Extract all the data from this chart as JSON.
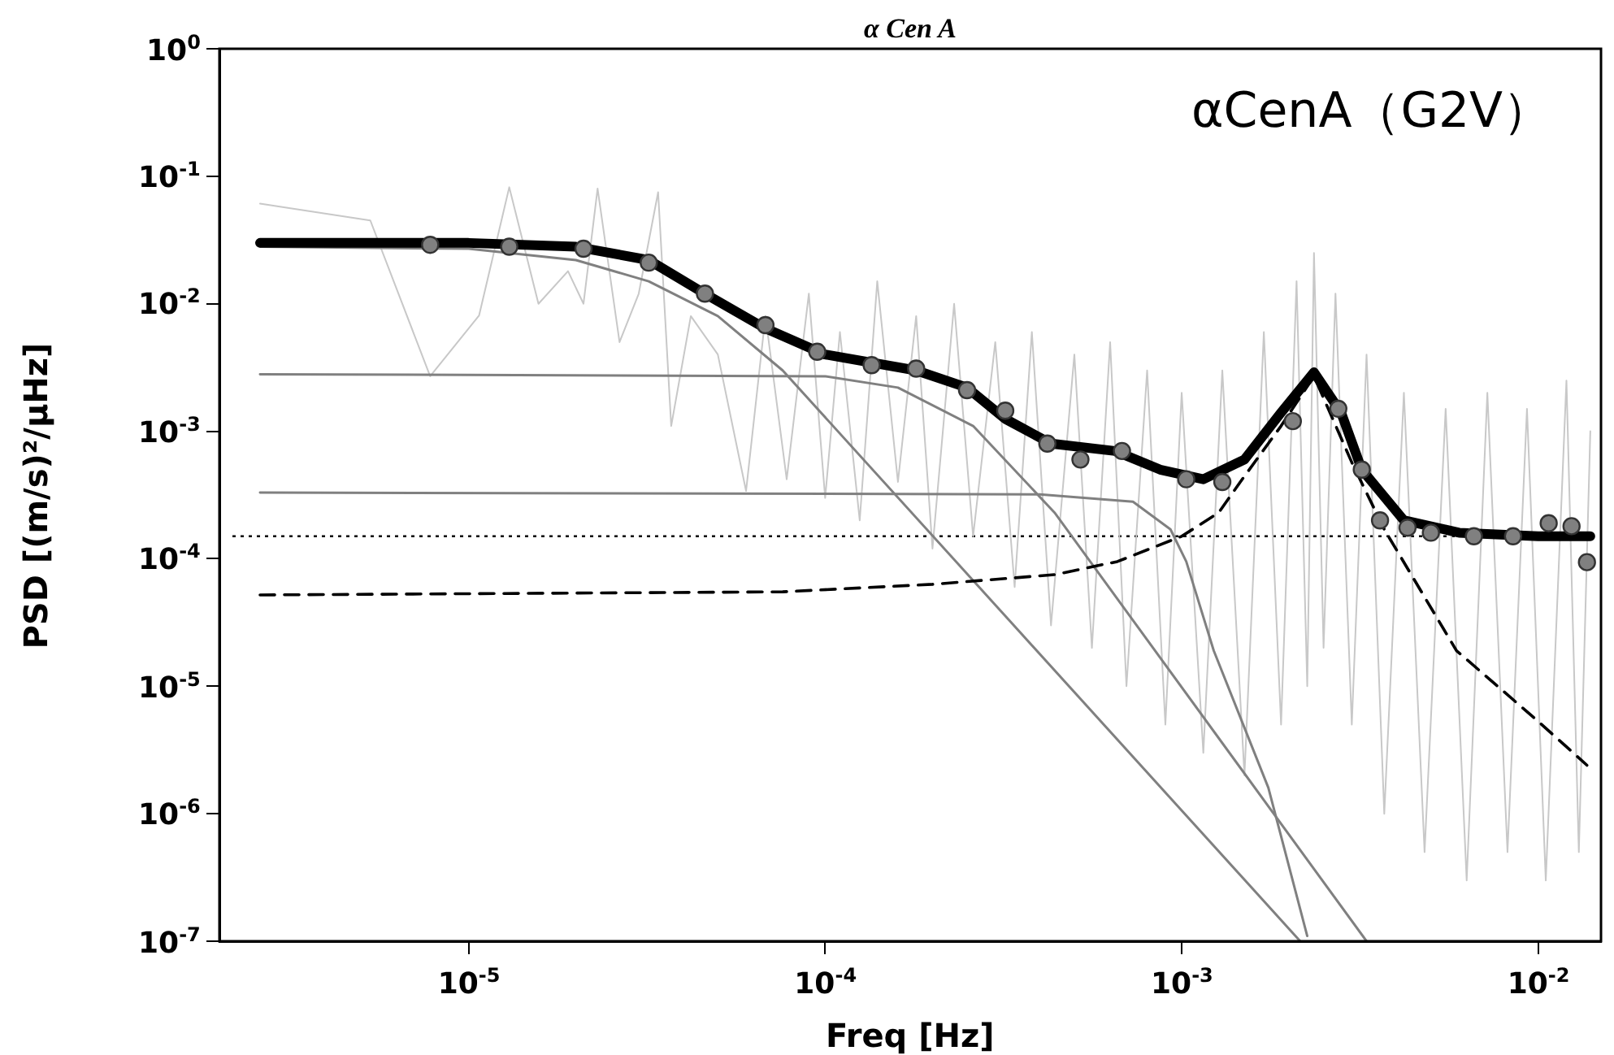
{
  "chart_data": {
    "type": "line",
    "title": "α Cen A",
    "xlabel": "Freq [Hz]",
    "ylabel": "PSD [(m/s)²/μHz]",
    "log": "xy",
    "xlim": [
      2e-06,
      0.015
    ],
    "ylim": [
      1e-07,
      1
    ],
    "xticks": [
      {
        "value": 1e-05,
        "label": "10$^{-5}$"
      },
      {
        "value": 0.0001,
        "label": "10$^{-4}$"
      },
      {
        "value": 0.001,
        "label": "10$^{-3}$"
      },
      {
        "value": 0.01,
        "label": "10$^{-2}$"
      }
    ],
    "yticks": [
      {
        "value": 1e-07,
        "label": "10$^{-7}$"
      },
      {
        "value": 1e-06,
        "label": "10$^{-6}$"
      },
      {
        "value": 1e-05,
        "label": "10$^{-5}$"
      },
      {
        "value": 0.0001,
        "label": "10$^{-4}$"
      },
      {
        "value": 0.001,
        "label": "10$^{-3}$"
      },
      {
        "value": 0.01,
        "label": "10$^{-2}$"
      },
      {
        "value": 0.1,
        "label": "10$^{-1}$"
      },
      {
        "value": 1,
        "label": "10$^{0}$"
      }
    ],
    "annotations": [
      "αCenA（G2V）"
    ],
    "ref_lines": [
      {
        "axis": "y",
        "value": 0.00015,
        "color": "#000000",
        "line_style": "dotted"
      }
    ],
    "series": [
      {
        "color": "#c8c8c8",
        "line_style": "solid",
        "x": [
          2.6e-06,
          5.3e-06,
          7.8e-06,
          1.07e-05,
          1.3e-05,
          1.57e-05,
          1.9e-05,
          2.1e-05,
          2.3e-05,
          2.65e-05,
          3e-05,
          3.4e-05,
          3.7e-05,
          4.2e-05,
          5e-05,
          6e-05,
          6.8e-05,
          7.8e-05,
          9e-05,
          0.0001,
          0.00011,
          0.000125,
          0.00014,
          0.00016,
          0.00018,
          0.0002,
          0.00023,
          0.00026,
          0.0003,
          0.00034,
          0.00038,
          0.00043,
          0.0005,
          0.00056,
          0.00063,
          0.0007,
          0.0008,
          0.0009,
          0.001,
          0.00115,
          0.0013,
          0.0015,
          0.0017,
          0.0019,
          0.0021,
          0.00225,
          0.00235,
          0.0025,
          0.0027,
          0.003,
          0.0033,
          0.0037,
          0.0042,
          0.0048,
          0.0055,
          0.0063,
          0.0072,
          0.0082,
          0.0093,
          0.0105,
          0.012,
          0.013,
          0.014
        ],
        "values": [
          0.061,
          0.045,
          0.0027,
          0.0081,
          0.082,
          0.01,
          0.018,
          0.01,
          0.08,
          0.005,
          0.012,
          0.075,
          0.0011,
          0.008,
          0.004,
          0.00034,
          0.008,
          0.00042,
          0.012,
          0.0003,
          0.006,
          0.0002,
          0.015,
          0.0004,
          0.008,
          0.00012,
          0.01,
          0.00015,
          0.005,
          6e-05,
          0.006,
          3e-05,
          0.004,
          2e-05,
          0.005,
          1e-05,
          0.003,
          5e-06,
          0.002,
          3e-06,
          0.003,
          2e-06,
          0.006,
          5e-06,
          0.015,
          1e-05,
          0.025,
          2e-05,
          0.012,
          5e-06,
          0.004,
          1e-06,
          0.002,
          5e-07,
          0.0015,
          3e-07,
          0.002,
          5e-07,
          0.0015,
          3e-07,
          0.0025,
          5e-07,
          0.001
        ]
      },
      {
        "color": "#808080",
        "line_style": "solid",
        "x": [
          2.6e-06,
          1e-05,
          2e-05,
          3.2e-05,
          5e-05,
          7.6e-05,
          0.00215
        ],
        "values": [
          0.028,
          0.027,
          0.022,
          0.015,
          0.008,
          0.003,
          1e-07
        ]
      },
      {
        "color": "#808080",
        "line_style": "solid",
        "x": [
          2.6e-06,
          0.0001,
          0.00016,
          0.00026,
          0.00044,
          0.0033
        ],
        "values": [
          0.0028,
          0.0027,
          0.0022,
          0.0011,
          0.00023,
          1e-07
        ]
      },
      {
        "color": "#808080",
        "line_style": "solid",
        "x": [
          2.6e-06,
          0.0004,
          0.00073,
          0.00093,
          0.00103,
          0.00123,
          0.00175,
          0.00225
        ],
        "values": [
          0.00033,
          0.00032,
          0.00028,
          0.00017,
          9.5e-05,
          1.9e-05,
          1.6e-06,
          1.1e-07
        ]
      },
      {
        "color": "#000000",
        "line_style": "dashed",
        "x": [
          2.6e-06,
          7.6e-05,
          0.0002,
          0.00044,
          0.00066,
          0.001,
          0.00127,
          0.00146,
          0.0019,
          0.00235,
          0.003,
          0.0037,
          0.0059,
          0.01,
          0.0137
        ],
        "values": [
          5.2e-05,
          5.5e-05,
          6.3e-05,
          7.5e-05,
          9.5e-05,
          0.00015,
          0.00023,
          0.0004,
          0.0011,
          0.0027,
          0.00057,
          0.00017,
          1.9e-05,
          5.3e-06,
          2.4e-06
        ]
      },
      {
        "color": "#000000",
        "line_style": "solid",
        "x": [
          2.6e-06,
          1e-05,
          2e-05,
          3.2e-05,
          4.6e-05,
          6.8e-05,
          0.0001,
          0.00018,
          0.00025,
          0.00032,
          0.00043,
          0.00065,
          0.00087,
          0.00115,
          0.0015,
          0.0019,
          0.00235,
          0.0028,
          0.0032,
          0.0042,
          0.006,
          0.01,
          0.014
        ],
        "values": [
          0.03,
          0.03,
          0.028,
          0.022,
          0.012,
          0.0064,
          0.004,
          0.003,
          0.0022,
          0.00125,
          0.0008,
          0.0007,
          0.0005,
          0.00042,
          0.0006,
          0.0014,
          0.0029,
          0.0014,
          0.0005,
          0.0002,
          0.00016,
          0.00015,
          0.00015
        ]
      },
      {
        "type": "scatter",
        "color": "#808080",
        "marker": "circle",
        "x": [
          7.8e-06,
          1.3e-05,
          2.1e-05,
          3.2e-05,
          4.6e-05,
          6.8e-05,
          9.5e-05,
          0.000135,
          0.00018,
          0.00025,
          0.00032,
          0.00042,
          0.00052,
          0.00068,
          0.00103,
          0.0013,
          0.00205,
          0.00275,
          0.0032,
          0.0036,
          0.0043,
          0.005,
          0.0066,
          0.0085,
          0.0107,
          0.0124,
          0.0137
        ],
        "values": [
          0.029,
          0.028,
          0.027,
          0.021,
          0.012,
          0.0068,
          0.0042,
          0.0033,
          0.0031,
          0.0021,
          0.00145,
          0.0008,
          0.0006,
          0.0007,
          0.00042,
          0.0004,
          0.0012,
          0.0015,
          0.0005,
          0.0002,
          0.000175,
          0.00016,
          0.00015,
          0.00015,
          0.00019,
          0.00018,
          9.4e-05
        ]
      }
    ]
  }
}
